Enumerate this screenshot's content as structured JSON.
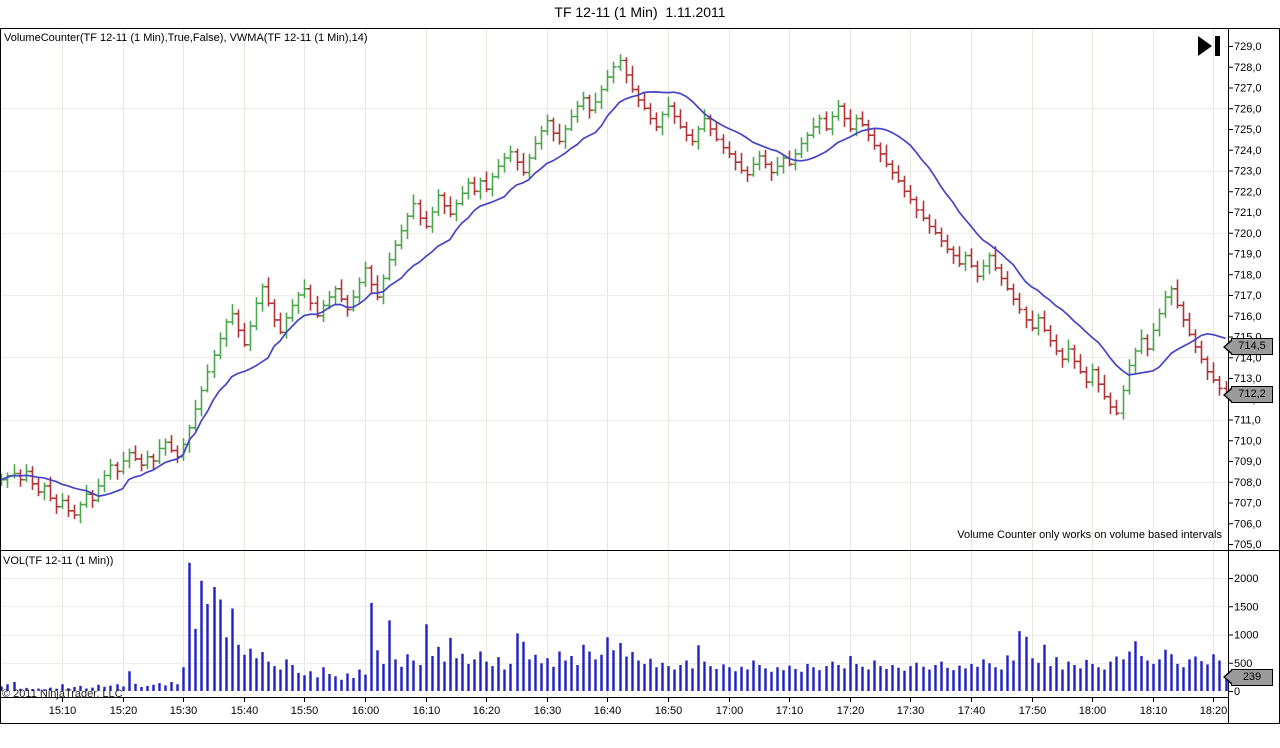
{
  "title": "TF 12-11 (1 Min)  1.11.2011",
  "price_panel": {
    "indicator_label": "VolumeCounter(TF 12-11 (1 Min),True,False), VWMA(TF 12-11 (1 Min),14)",
    "note": "Volume Counter only works on volume based intervals",
    "markers": {
      "vwma": {
        "label": "714,5",
        "value": 714.5
      },
      "last": {
        "label": "712,2",
        "value": 712.2
      }
    }
  },
  "volume_panel": {
    "label": "VOL(TF 12-11 (1 Min))",
    "marker": {
      "label": "239",
      "value": 239
    },
    "axis_ticks": [
      0,
      500,
      1000,
      1500,
      2000
    ]
  },
  "price_axis": {
    "min": 705,
    "max": 729,
    "step": 1,
    "decimal_separator": ",",
    "grid_step": 3
  },
  "time_axis": {
    "labels": [
      "15:10",
      "15:20",
      "15:30",
      "15:40",
      "15:50",
      "16:00",
      "16:10",
      "16:20",
      "16:30",
      "16:40",
      "16:50",
      "17:00",
      "17:10",
      "17:20",
      "17:30",
      "17:40",
      "17:50",
      "18:00",
      "18:10",
      "18:20"
    ],
    "minutes_from_start": [
      10,
      20,
      30,
      40,
      50,
      60,
      70,
      80,
      90,
      100,
      110,
      120,
      130,
      140,
      150,
      160,
      170,
      180,
      190,
      200
    ]
  },
  "footer": {
    "copyright": "© 2011 NinjaTrader, LLC"
  },
  "icons": {
    "go_to_end": "play-to-last-bar"
  },
  "colors": {
    "up_bar": "#4ca64c",
    "down_bar": "#b23434",
    "vwma_line": "#4444c8",
    "volume_bar": "#2020c8",
    "grid": "#e9e6df",
    "marker_bg": "#9b9b9b",
    "frame": "#000000",
    "background": "#ffffff"
  },
  "chart_data": {
    "type": "ohlc-bar-with-volume",
    "title": "TF 12-11 (1 Min)  1.11.2011",
    "instrument": "TF 12-11",
    "interval": "1 Min",
    "date_shown": "1.11.2011",
    "start_time": "15:00",
    "interval_minutes": 1,
    "price_axis_range": [
      705,
      729
    ],
    "volume_axis_range": [
      0,
      2250
    ],
    "legend": [
      "VolumeCounter(TF 12-11 (1 Min),True,False)",
      "VWMA(TF 12-11 (1 Min),14)",
      "VOL(TF 12-11 (1 Min))"
    ],
    "open_rule": "previous_close",
    "first_open": 708.0,
    "wick_high_pattern": [
      0.3,
      0.15,
      0.45,
      0.2,
      0.35,
      0.25
    ],
    "wick_low_pattern": [
      0.2,
      0.4,
      0.15,
      0.35,
      0.1,
      0.3
    ],
    "closes": [
      708.1,
      708.3,
      708.4,
      708.1,
      708.5,
      707.9,
      707.5,
      707.8,
      707.2,
      706.8,
      707.1,
      706.6,
      706.4,
      706.9,
      707.4,
      707.1,
      707.8,
      708.3,
      708.8,
      708.5,
      709.0,
      709.4,
      709.1,
      708.8,
      709.2,
      709.0,
      709.6,
      709.9,
      709.5,
      709.2,
      709.8,
      710.6,
      711.5,
      712.4,
      713.3,
      714.1,
      714.9,
      715.7,
      716.1,
      715.3,
      714.6,
      715.5,
      716.6,
      717.4,
      716.6,
      715.8,
      715.2,
      715.9,
      716.5,
      717.0,
      717.3,
      716.6,
      716.0,
      716.5,
      716.9,
      717.3,
      716.8,
      716.3,
      716.9,
      717.6,
      718.3,
      717.5,
      716.9,
      717.8,
      718.7,
      719.4,
      720.1,
      720.8,
      721.4,
      720.7,
      720.3,
      721.0,
      721.8,
      721.3,
      720.9,
      721.4,
      721.9,
      722.4,
      722.0,
      722.5,
      722.1,
      722.7,
      723.2,
      723.6,
      723.9,
      723.4,
      722.9,
      723.6,
      724.3,
      724.9,
      725.4,
      724.8,
      724.4,
      725.0,
      725.6,
      726.1,
      726.5,
      725.9,
      726.3,
      726.9,
      727.5,
      728.0,
      728.3,
      727.6,
      726.9,
      726.4,
      726.0,
      725.5,
      725.1,
      725.7,
      726.1,
      725.6,
      725.1,
      724.7,
      724.4,
      725.0,
      725.5,
      725.0,
      724.5,
      724.1,
      723.8,
      723.4,
      723.0,
      722.8,
      723.3,
      723.7,
      723.3,
      722.9,
      723.2,
      723.6,
      723.3,
      723.8,
      724.3,
      724.7,
      725.1,
      725.5,
      725.0,
      725.6,
      726.1,
      725.5,
      725.0,
      725.5,
      725.2,
      724.7,
      724.2,
      723.8,
      723.3,
      722.9,
      722.5,
      722.0,
      721.6,
      721.1,
      720.7,
      720.3,
      720.0,
      719.6,
      719.2,
      718.9,
      718.5,
      718.9,
      718.4,
      717.9,
      718.4,
      718.9,
      718.3,
      717.8,
      717.3,
      716.8,
      716.3,
      715.8,
      715.4,
      715.9,
      715.3,
      714.8,
      714.3,
      713.9,
      714.4,
      713.8,
      713.3,
      712.8,
      713.4,
      712.7,
      712.1,
      711.6,
      711.3,
      712.4,
      713.6,
      714.3,
      714.9,
      714.4,
      715.3,
      716.1,
      716.9,
      717.3,
      716.5,
      715.8,
      715.1,
      714.5,
      713.9,
      713.3,
      712.9,
      712.5,
      712.2
    ],
    "volumes": [
      80,
      120,
      160,
      40,
      55,
      35,
      45,
      30,
      60,
      40,
      120,
      50,
      70,
      90,
      45,
      60,
      110,
      75,
      95,
      120,
      80,
      350,
      130,
      70,
      90,
      110,
      140,
      100,
      160,
      120,
      420,
      2270,
      1100,
      1950,
      1540,
      1840,
      1620,
      950,
      1460,
      820,
      640,
      750,
      580,
      690,
      520,
      440,
      380,
      560,
      460,
      320,
      280,
      350,
      240,
      420,
      300,
      260,
      200,
      310,
      230,
      380,
      290,
      1560,
      720,
      480,
      1250,
      560,
      430,
      650,
      540,
      460,
      1180,
      620,
      780,
      520,
      940,
      580,
      660,
      480,
      560,
      700,
      520,
      440,
      600,
      380,
      480,
      1020,
      870,
      560,
      640,
      490,
      580,
      430,
      700,
      540,
      620,
      460,
      820,
      700,
      560,
      640,
      950,
      720,
      850,
      610,
      690,
      540,
      480,
      570,
      420,
      500,
      440,
      380,
      460,
      540,
      400,
      810,
      520,
      440,
      390,
      470,
      420,
      350,
      430,
      380,
      540,
      460,
      400,
      340,
      420,
      370,
      450,
      390,
      340,
      480,
      420,
      370,
      440,
      520,
      460,
      400,
      620,
      480,
      430,
      380,
      540,
      440,
      390,
      460,
      410,
      360,
      440,
      500,
      430,
      380,
      460,
      520,
      410,
      370,
      450,
      400,
      480,
      430,
      560,
      490,
      420,
      380,
      630,
      540,
      1060,
      960,
      580,
      500,
      820,
      440,
      600,
      380,
      520,
      460,
      400,
      550,
      480,
      420,
      380,
      520,
      610,
      560,
      700,
      880,
      620,
      540,
      480,
      560,
      730,
      650,
      480,
      420,
      560,
      610,
      530,
      470,
      650,
      540,
      239
    ],
    "overlays": [
      {
        "name": "VWMA(TF 12-11 (1 Min),14)",
        "type": "volume_weighted_moving_average",
        "period": 14,
        "last_value": 714.5
      }
    ],
    "last_close": 712.2,
    "last_volume": 239
  }
}
